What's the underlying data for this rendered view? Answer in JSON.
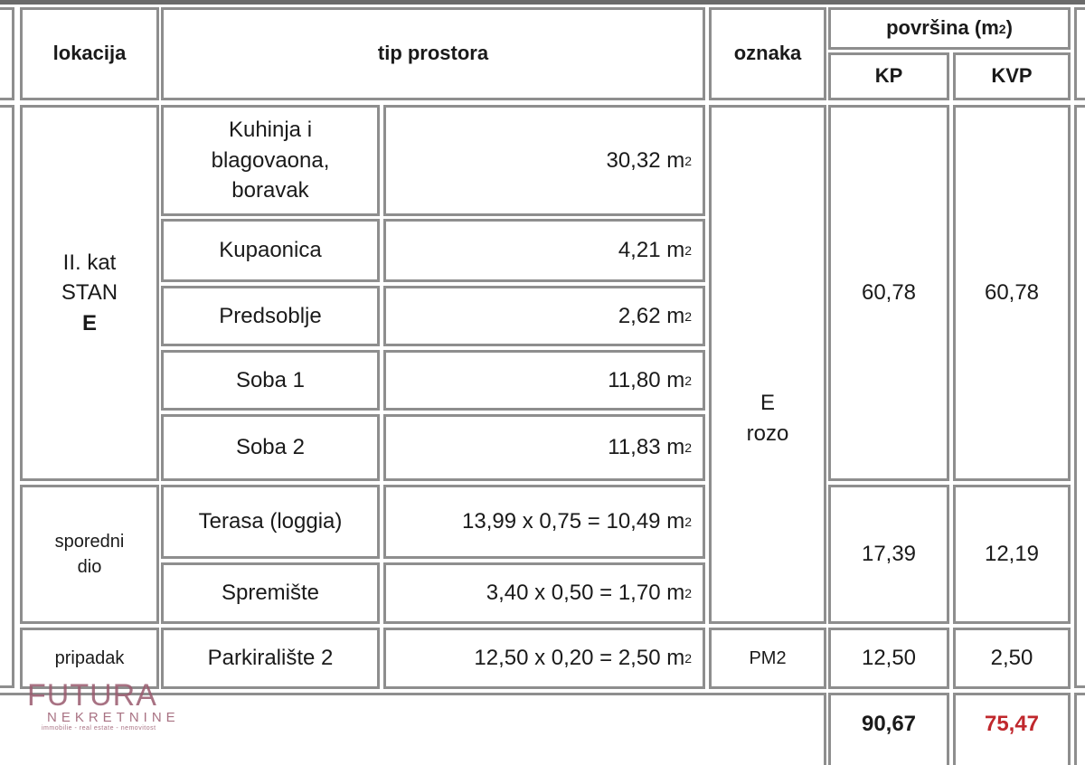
{
  "header": {
    "lokacija": "lokacija",
    "tip_prostora": "tip prostora",
    "oznaka": "oznaka",
    "povrsina": "površina (m",
    "povrsina_sup": "2",
    "povrsina_close": ")",
    "kp": "KP",
    "kvp": "KVP"
  },
  "groups": {
    "stan": {
      "line1": "II. kat",
      "line2": "STAN",
      "line3": "E"
    },
    "sporedni": {
      "line1": "sporedni",
      "line2": "dio"
    },
    "pripadak": "pripadak"
  },
  "rooms": [
    {
      "name": "Kuhinja i blagovaona, boravak",
      "value": "30,32 m"
    },
    {
      "name": "Kupaonica",
      "value": "4,21 m"
    },
    {
      "name": "Predsoblje",
      "value": "2,62 m"
    },
    {
      "name": "Soba 1",
      "value": "11,80 m"
    },
    {
      "name": "Soba 2",
      "value": "11,83 m"
    },
    {
      "name": "Terasa (loggia)",
      "value": "13,99 x 0,75 = 10,49 m"
    },
    {
      "name": "Spremište",
      "value": "3,40 x 0,50 = 1,70 m"
    },
    {
      "name": "Parkiralište 2",
      "value": "12,50 x 0,20 = 2,50 m"
    }
  ],
  "unit_sup": "2",
  "oznaka": {
    "stan_line1": "E",
    "stan_line2": "rozo",
    "parking": "PM2"
  },
  "areas": {
    "stan": {
      "kp": "60,78",
      "kvp": "60,78"
    },
    "sporedni": {
      "kp": "17,39",
      "kvp": "12,19"
    },
    "pripadak": {
      "kp": "12,50",
      "kvp": "2,50"
    },
    "total": {
      "kp": "90,67",
      "kvp": "75,47"
    }
  },
  "colors": {
    "total_kvp": "#c0282d",
    "logo": "#9a5a6e"
  },
  "logo": {
    "name": "FUTURA",
    "sub": "NEKRETNINE",
    "tagline": "immobilie - real estate - nemovitost"
  }
}
